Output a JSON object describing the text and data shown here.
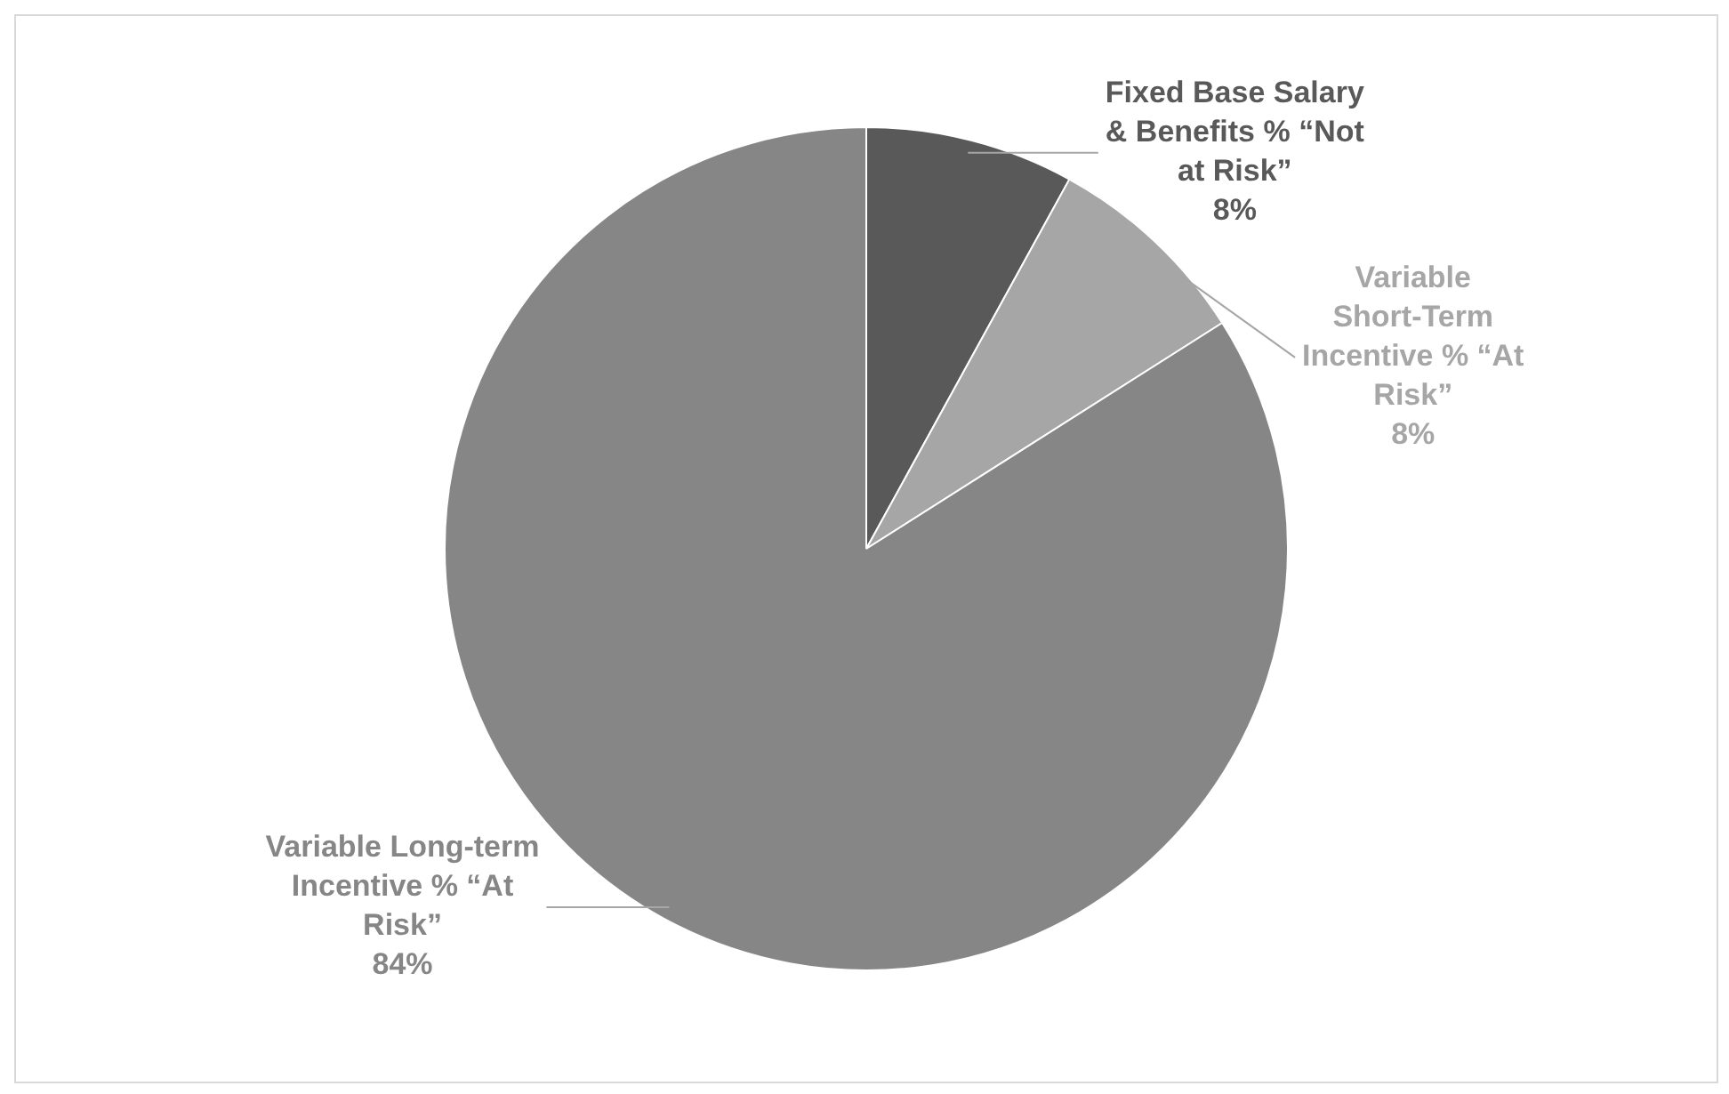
{
  "chart_data": {
    "type": "pie",
    "categories": [
      "Fixed Base Salary & Benefits % “Not at Risk”",
      "Variable Short-Term Incentive % “At Risk”",
      "Variable Long-term Incentive % “At Risk”"
    ],
    "values": [
      8,
      8,
      84
    ],
    "value_labels": [
      "8%",
      "8%",
      "84%"
    ],
    "colors": [
      "#595959",
      "#a6a6a6",
      "#868686"
    ],
    "legend": false
  }
}
